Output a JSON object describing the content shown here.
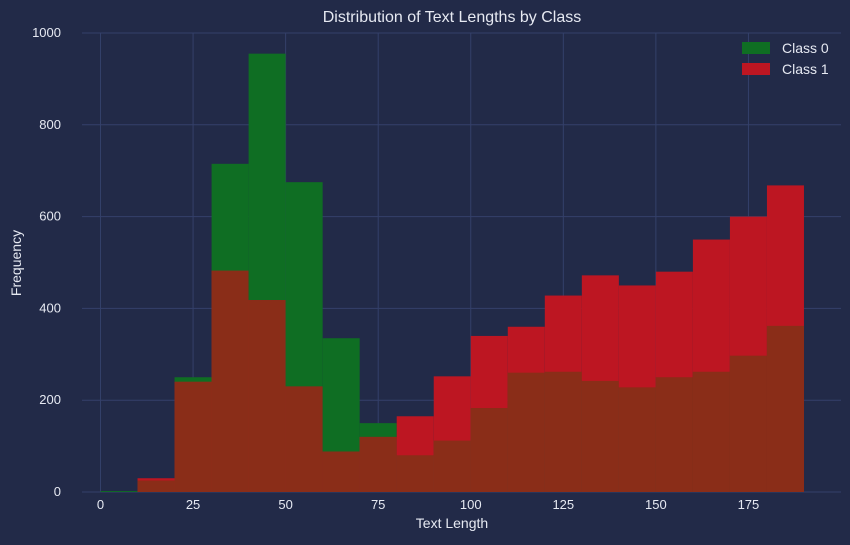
{
  "colors": {
    "background": "#222a48",
    "grid": "#34406a",
    "text": "#e6e9f2",
    "class0": "#0f6e23",
    "class1": "#bd1622",
    "overlap": "#8a2d18"
  },
  "chart_data": {
    "type": "histogram",
    "title": "Distribution of Text Lengths by Class",
    "xlabel": "Text Length",
    "ylabel": "Frequency",
    "xlim": [
      -5,
      200
    ],
    "ylim": [
      0,
      1000
    ],
    "grid": true,
    "legend_position": "top-right",
    "x_ticks": [
      0,
      25,
      50,
      75,
      100,
      125,
      150,
      175
    ],
    "y_ticks": [
      0,
      200,
      400,
      600,
      800,
      1000
    ],
    "bin_edges": [
      0,
      10,
      20,
      30,
      40,
      50,
      60,
      70,
      80,
      90,
      100,
      110,
      120,
      130,
      140,
      150,
      160,
      170,
      180,
      190
    ],
    "series": [
      {
        "name": "Class 0",
        "color_key": "class0",
        "values": [
          2,
          25,
          250,
          715,
          955,
          675,
          335,
          150,
          80,
          112,
          183,
          260,
          262,
          242,
          228,
          250,
          262,
          297,
          362
        ]
      },
      {
        "name": "Class 1",
        "color_key": "class1",
        "values": [
          0,
          30,
          240,
          482,
          418,
          230,
          88,
          120,
          165,
          252,
          340,
          360,
          428,
          472,
          450,
          480,
          550,
          600,
          668
        ]
      }
    ]
  }
}
